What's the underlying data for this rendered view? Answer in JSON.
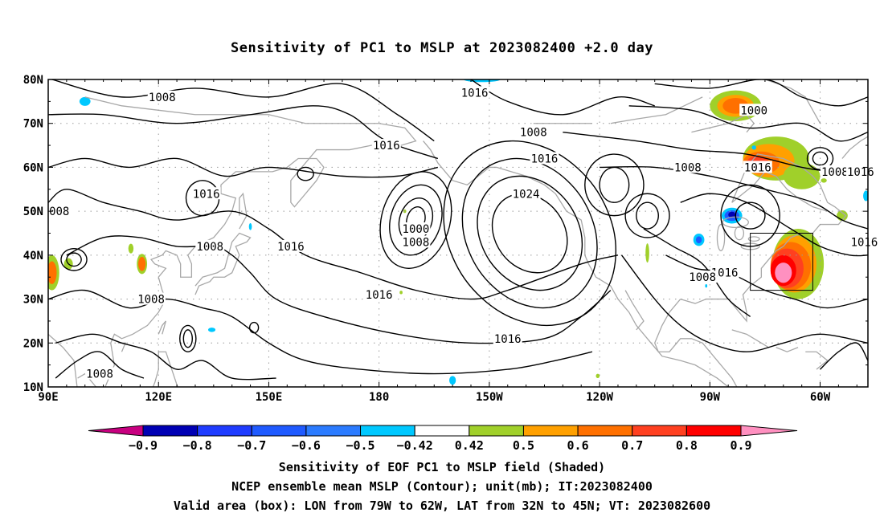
{
  "title": "Sensitivity of PC1 to MSLP at 2023082400 +2.0 day",
  "map": {
    "lat_labels": [
      "80N",
      "70N",
      "60N",
      "50N",
      "40N",
      "30N",
      "20N",
      "10N"
    ],
    "lat_values": [
      80,
      70,
      60,
      50,
      40,
      30,
      20,
      10
    ],
    "lon_labels": [
      "90E",
      "120E",
      "150E",
      "180",
      "150W",
      "120W",
      "90W",
      "60W"
    ],
    "lon_values": [
      90,
      120,
      150,
      180,
      210,
      240,
      270,
      300
    ],
    "lon_range": [
      90,
      313
    ],
    "lat_range": [
      10,
      80
    ],
    "valid_box": {
      "lon": [
        281,
        298
      ],
      "lat": [
        32,
        45
      ]
    },
    "contour_labels": [
      {
        "text": "1016",
        "lon": 206,
        "lat": 77
      },
      {
        "text": "1008",
        "lon": 121,
        "lat": 76
      },
      {
        "text": "1000",
        "lon": 282,
        "lat": 73
      },
      {
        "text": "1008",
        "lon": 222,
        "lat": 68
      },
      {
        "text": "1016",
        "lon": 182,
        "lat": 65
      },
      {
        "text": "1016",
        "lon": 225,
        "lat": 62
      },
      {
        "text": "1008",
        "lon": 264,
        "lat": 60
      },
      {
        "text": "1016",
        "lon": 283,
        "lat": 60
      },
      {
        "text": "1008",
        "lon": 304,
        "lat": 59
      },
      {
        "text": "1016",
        "lon": 311,
        "lat": 59
      },
      {
        "text": "1024",
        "lon": 220,
        "lat": 54
      },
      {
        "text": "1016",
        "lon": 133,
        "lat": 54
      },
      {
        "text": "008",
        "lon": 93,
        "lat": 50
      },
      {
        "text": "1000",
        "lon": 190,
        "lat": 46
      },
      {
        "text": "1008",
        "lon": 190,
        "lat": 43
      },
      {
        "text": "1008",
        "lon": 134,
        "lat": 42
      },
      {
        "text": "1016",
        "lon": 156,
        "lat": 42
      },
      {
        "text": "1016",
        "lon": 312,
        "lat": 43
      },
      {
        "text": "1016",
        "lon": 274,
        "lat": 36
      },
      {
        "text": "1008",
        "lon": 268,
        "lat": 35
      },
      {
        "text": "1016",
        "lon": 180,
        "lat": 31
      },
      {
        "text": "1008",
        "lon": 118,
        "lat": 30
      },
      {
        "text": "1016",
        "lon": 215,
        "lat": 21
      },
      {
        "text": "1008",
        "lon": 104,
        "lat": 13
      }
    ],
    "positive_blobs": [
      {
        "lon": 294,
        "lat": 38,
        "rx": 7,
        "ry": 8,
        "level": "0.5"
      },
      {
        "lon": 293,
        "lat": 38,
        "rx": 6,
        "ry": 6.5,
        "level": "0.6"
      },
      {
        "lon": 292,
        "lat": 37.5,
        "rx": 5.5,
        "ry": 5.5,
        "level": "0.7"
      },
      {
        "lon": 291,
        "lat": 37,
        "rx": 4.5,
        "ry": 4.5,
        "level": "0.8"
      },
      {
        "lon": 290,
        "lat": 36.5,
        "rx": 3.5,
        "ry": 3.5,
        "level": "0.9"
      },
      {
        "lon": 290,
        "lat": 36,
        "rx": 2.3,
        "ry": 2.3,
        "level": "0.9+"
      },
      {
        "lon": 288,
        "lat": 62,
        "rx": 9,
        "ry": 5,
        "level": "0.5"
      },
      {
        "lon": 286,
        "lat": 61.5,
        "rx": 7,
        "ry": 3.8,
        "level": "0.6"
      },
      {
        "lon": 284,
        "lat": 61,
        "rx": 5,
        "ry": 2.6,
        "level": "0.7"
      },
      {
        "lon": 283,
        "lat": 61,
        "rx": 3,
        "ry": 1.6,
        "level": "0.8"
      },
      {
        "lon": 277,
        "lat": 74,
        "rx": 7,
        "ry": 3.5,
        "level": "0.5"
      },
      {
        "lon": 277,
        "lat": 74,
        "rx": 5,
        "ry": 2.5,
        "level": "0.6"
      },
      {
        "lon": 277,
        "lat": 74,
        "rx": 3.5,
        "ry": 1.8,
        "level": "0.7"
      },
      {
        "lon": 115.5,
        "lat": 38,
        "rx": 1.4,
        "ry": 2.3,
        "level": "0.5"
      },
      {
        "lon": 115.5,
        "lat": 38,
        "rx": 1.0,
        "ry": 1.6,
        "level": "0.7"
      },
      {
        "lon": 91,
        "lat": 36,
        "rx": 2,
        "ry": 4,
        "level": "0.5"
      },
      {
        "lon": 91,
        "lat": 36,
        "rx": 1.3,
        "ry": 2.6,
        "level": "0.7"
      },
      {
        "lon": 95.5,
        "lat": 38,
        "rx": 1.2,
        "ry": 1.3,
        "level": "0.5"
      },
      {
        "lon": 112.5,
        "lat": 41.5,
        "rx": 0.7,
        "ry": 1.1,
        "level": "0.5"
      },
      {
        "lon": 253,
        "lat": 40.5,
        "rx": 0.5,
        "ry": 2.2,
        "level": "0.5"
      },
      {
        "lon": 301,
        "lat": 57,
        "rx": 0.8,
        "ry": 0.5,
        "level": "0.5"
      },
      {
        "lon": 306,
        "lat": 49,
        "rx": 1.5,
        "ry": 1.2,
        "level": "0.5"
      },
      {
        "lon": 295,
        "lat": 58,
        "rx": 5,
        "ry": 3,
        "level": "0.5"
      },
      {
        "lon": 239.5,
        "lat": 12.5,
        "rx": 0.5,
        "ry": 0.5,
        "level": "0.5"
      },
      {
        "lon": 187,
        "lat": 50,
        "rx": 0.4,
        "ry": 0.4,
        "level": "0.5"
      },
      {
        "lon": 186,
        "lat": 31.5,
        "rx": 0.4,
        "ry": 0.4,
        "level": "0.5"
      }
    ],
    "negative_blobs": [
      {
        "lon": 276,
        "lat": 49,
        "rx": 2.8,
        "ry": 1.8,
        "level": "-0.42"
      },
      {
        "lon": 276,
        "lat": 49,
        "rx": 2.0,
        "ry": 1.2,
        "level": "-0.6"
      },
      {
        "lon": 276,
        "lat": 49.2,
        "rx": 1.0,
        "ry": 0.7,
        "level": "-0.8"
      },
      {
        "lon": 267,
        "lat": 43.5,
        "rx": 1.5,
        "ry": 1.4,
        "level": "-0.42"
      },
      {
        "lon": 267,
        "lat": 43.5,
        "rx": 0.8,
        "ry": 0.8,
        "level": "-0.6"
      },
      {
        "lon": 100,
        "lat": 75,
        "rx": 1.5,
        "ry": 1.0,
        "level": "-0.42"
      },
      {
        "lon": 200,
        "lat": 11.5,
        "rx": 0.9,
        "ry": 1.0,
        "level": "-0.42"
      },
      {
        "lon": 134.5,
        "lat": 23,
        "rx": 1.0,
        "ry": 0.5,
        "level": "-0.42"
      },
      {
        "lon": 145,
        "lat": 46.5,
        "rx": 0.4,
        "ry": 0.8,
        "level": "-0.42"
      },
      {
        "lon": 282,
        "lat": 64.5,
        "rx": 0.6,
        "ry": 0.5,
        "level": "-0.42"
      },
      {
        "lon": 208,
        "lat": 80,
        "rx": 5,
        "ry": 0.6,
        "level": "-0.42"
      },
      {
        "lon": 312.5,
        "lat": 53.5,
        "rx": 0.8,
        "ry": 1.2,
        "level": "-0.42"
      },
      {
        "lon": 269,
        "lat": 33,
        "rx": 0.3,
        "ry": 0.4,
        "level": "-0.42"
      }
    ]
  },
  "colorbar": {
    "labels": [
      "-0.9",
      "-0.8",
      "-0.7",
      "-0.6",
      "-0.5",
      "-0.42",
      "0.42",
      "0.5",
      "0.6",
      "0.7",
      "0.8",
      "0.9"
    ],
    "colors": [
      "#c80080",
      "#0000b4",
      "#1f3cff",
      "#1f5aff",
      "#2b7bff",
      "#00c8ff",
      "#ffffff",
      "#a0d02a",
      "#ffa000",
      "#ff7000",
      "#ff4020",
      "#ff0000",
      "#ff90c0"
    ],
    "level_colors": {
      "0.5": "#a0d02a",
      "0.6": "#ffa000",
      "0.7": "#ff7000",
      "0.8": "#ff4020",
      "0.9": "#ff0000",
      "0.9+": "#ff90c0",
      "-0.42": "#00c8ff",
      "-0.5": "#2b7bff",
      "-0.6": "#1f5aff",
      "-0.7": "#1f3cff",
      "-0.8": "#0000b4",
      "-0.9": "#c80080"
    }
  },
  "captions": {
    "line1": "Sensitivity of EOF PC1 to MSLP field (Shaded)",
    "line2": "NCEP ensemble mean MSLP (Contour); unit(mb); IT:2023082400",
    "line3": "Valid area (box): LON from 79W to 62W, LAT from 32N to 45N; VT: 2023082600"
  }
}
